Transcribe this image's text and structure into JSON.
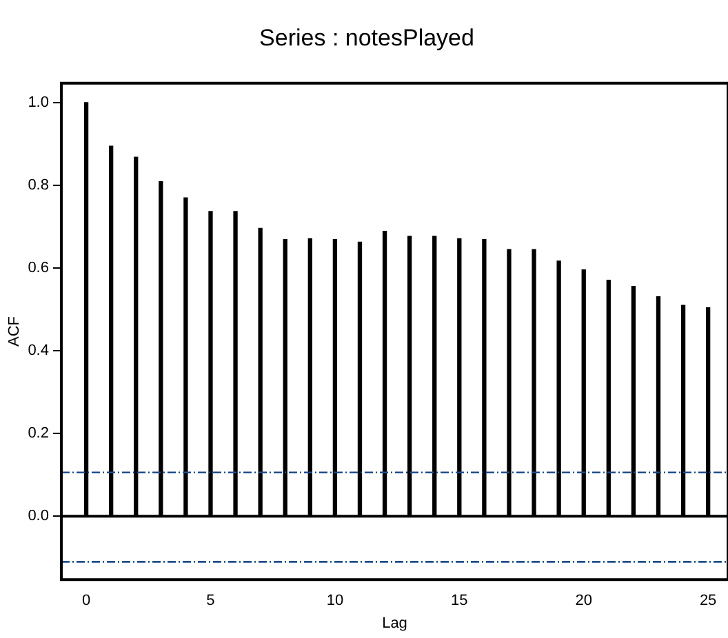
{
  "chart_data": {
    "type": "bar",
    "title": "Series : notesPlayed",
    "xlabel": "Lag",
    "ylabel": "ACF",
    "x": [
      0,
      1,
      2,
      3,
      4,
      5,
      6,
      7,
      8,
      9,
      10,
      11,
      12,
      13,
      14,
      15,
      16,
      17,
      18,
      19,
      20,
      21,
      22,
      23,
      24,
      25
    ],
    "values": [
      1.0,
      0.895,
      0.868,
      0.809,
      0.77,
      0.737,
      0.737,
      0.696,
      0.669,
      0.671,
      0.669,
      0.663,
      0.689,
      0.677,
      0.677,
      0.671,
      0.669,
      0.645,
      0.645,
      0.617,
      0.596,
      0.571,
      0.556,
      0.531,
      0.51,
      0.504
    ],
    "color": "#000000",
    "xlim": [
      -1,
      25.8
    ],
    "xticks": [
      0,
      5,
      10,
      15,
      20,
      25
    ],
    "ylim": [
      -0.153,
      1.047
    ],
    "yticks": [
      {
        "value": 0,
        "label": "0.0"
      },
      0.2,
      0.4,
      0.6,
      0.8,
      {
        "value": 1,
        "label": "1.0"
      }
    ],
    "ref_lines": [
      {
        "axis": "y",
        "value": 0,
        "color": "#000000",
        "line_style": "solid"
      },
      {
        "axis": "y",
        "value": 0.106,
        "color": "#1f4e8c",
        "line_style": "dashed"
      },
      {
        "axis": "y",
        "value": -0.11,
        "color": "#1f4e8c",
        "line_style": "dashed"
      }
    ],
    "grid": false,
    "legend": false
  }
}
